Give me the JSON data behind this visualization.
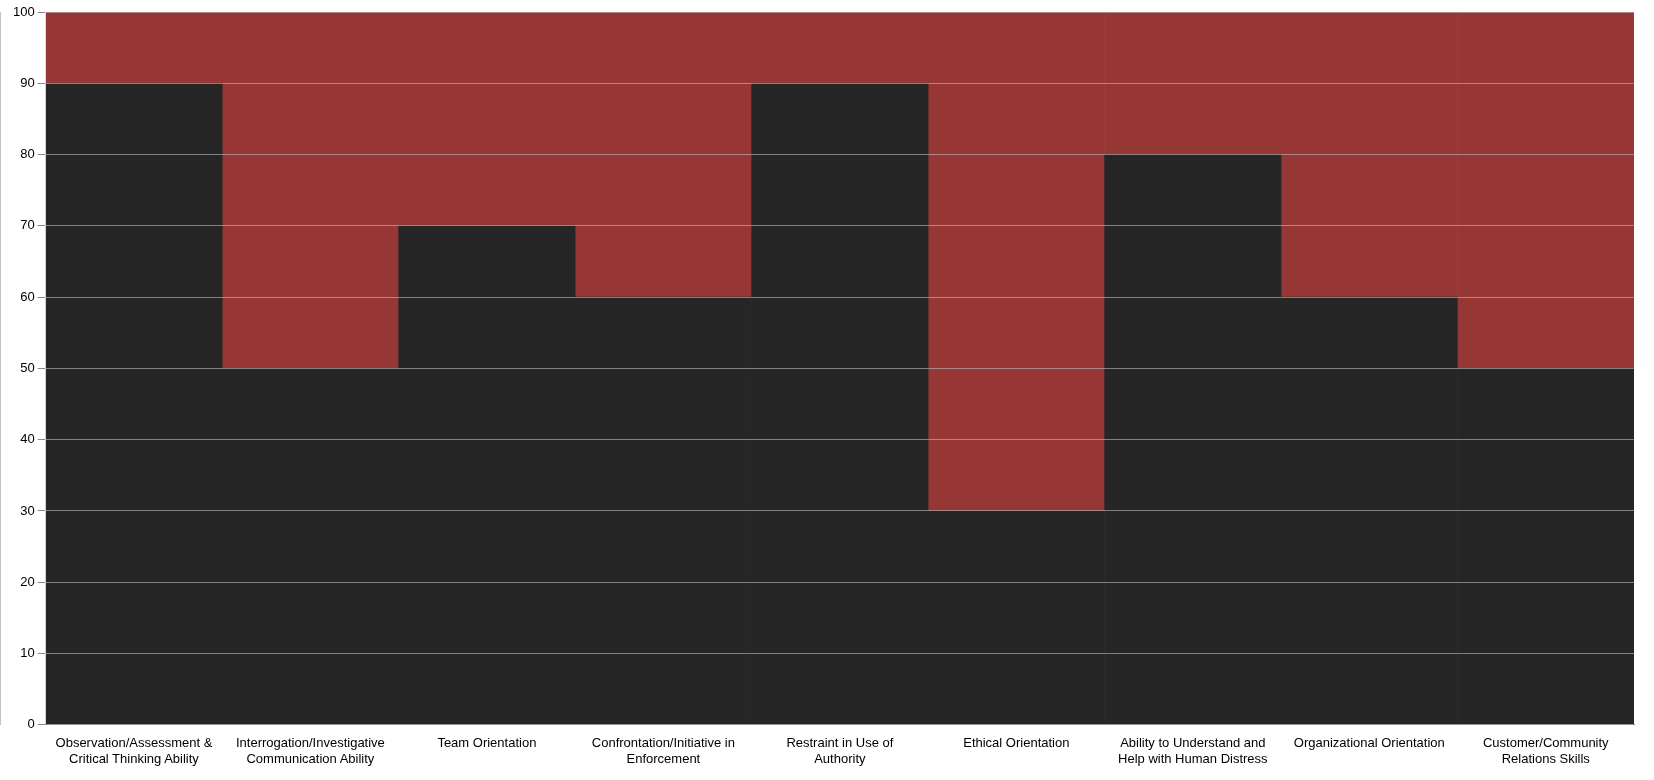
{
  "chart_data": {
    "type": "bar",
    "stacked": true,
    "categories": [
      "Observation/Assessment & Critical Thinking Ability",
      "Interrogation/Investigative Communication Ability",
      "Team Orientation",
      "Confrontation/Initiative in Enforcement",
      "Restraint in Use of Authority",
      "Ethical Orientation",
      "Ability to Understand and Help with Human Distress",
      "Organizational Orientation",
      "Customer/Community Relations Skills"
    ],
    "series": [
      {
        "color": "#262626",
        "values": [
          90,
          50,
          70,
          60,
          90,
          30,
          80,
          60,
          50
        ]
      },
      {
        "color": "#963736",
        "values": [
          10,
          50,
          30,
          40,
          10,
          70,
          20,
          40,
          50
        ]
      }
    ],
    "ylim": [
      0,
      100
    ],
    "yticks": [
      0,
      10,
      20,
      30,
      40,
      50,
      60,
      70,
      80,
      90,
      100
    ],
    "grid": "y",
    "legend": false
  }
}
